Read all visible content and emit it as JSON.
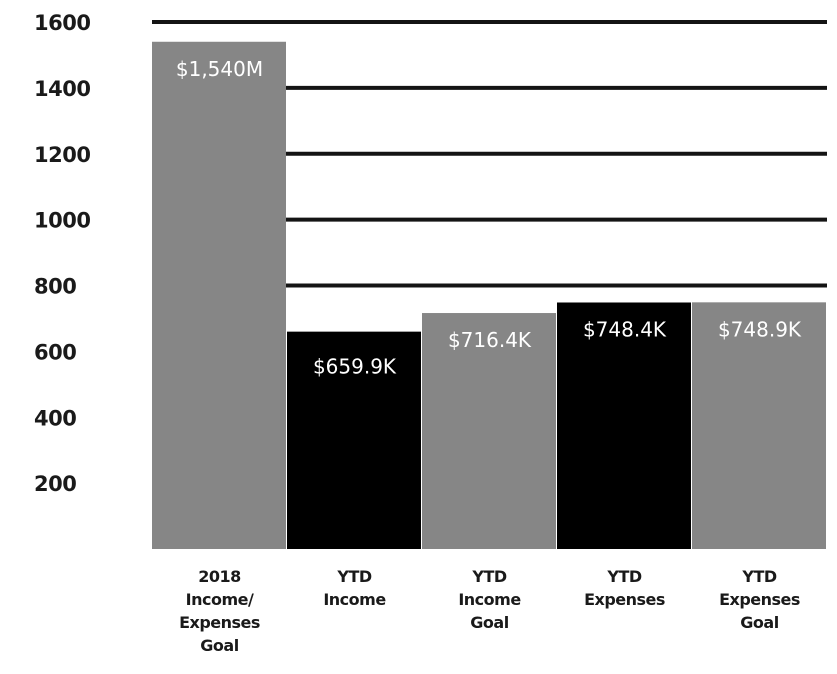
{
  "chart_data": {
    "type": "bar",
    "categories": [
      [
        "2018",
        "Income/",
        "Expenses",
        "Goal"
      ],
      [
        "YTD",
        "Income"
      ],
      [
        "YTD",
        "Income",
        "Goal"
      ],
      [
        "YTD",
        "Expenses"
      ],
      [
        "YTD",
        "Expenses",
        "Goal"
      ]
    ],
    "values": [
      1540,
      659.9,
      716.4,
      748.4,
      748.9
    ],
    "data_labels": [
      "$1,540M",
      "$659.9K",
      "$716.4K",
      "$748.4K",
      "$748.9K"
    ],
    "bar_colors": [
      "#868686",
      "#000000",
      "#868686",
      "#000000",
      "#868686"
    ],
    "ylim": [
      0,
      1600
    ],
    "yticks": [
      200,
      400,
      600,
      800,
      1000,
      1200,
      1400,
      1600
    ],
    "ytick_labels": [
      "200",
      "400",
      "600",
      "800",
      "1000",
      "1200",
      "1400",
      "1600"
    ],
    "grid": true,
    "grid_color": "#141414",
    "title": "",
    "xlabel": "",
    "ylabel": ""
  }
}
